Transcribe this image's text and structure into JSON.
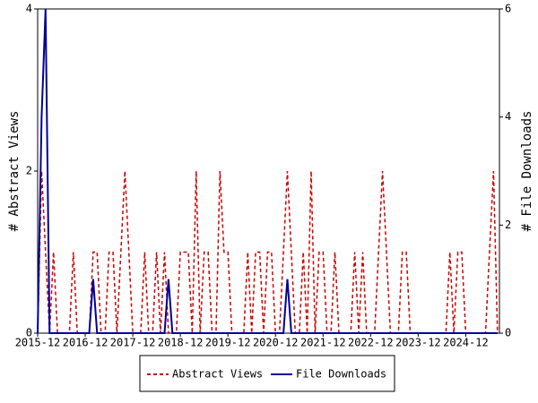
{
  "chart_data": {
    "type": "line",
    "y_label": "# Abstract Views",
    "y2_label": "# File Downloads",
    "categories": [
      "2015-12",
      null,
      null,
      null,
      null,
      null,
      null,
      null,
      null,
      null,
      null,
      null,
      "2016-12",
      null,
      null,
      null,
      null,
      null,
      null,
      null,
      null,
      null,
      null,
      null,
      "2017-12",
      null,
      null,
      null,
      null,
      null,
      null,
      null,
      null,
      null,
      null,
      null,
      "2018-12",
      null,
      null,
      null,
      null,
      null,
      null,
      null,
      null,
      null,
      null,
      null,
      "2019-12",
      null,
      null,
      null,
      null,
      null,
      null,
      null,
      null,
      null,
      null,
      null,
      "2020-12",
      null,
      null,
      null,
      null,
      null,
      null,
      null,
      null,
      null,
      null,
      null,
      "2021-12",
      null,
      null,
      null,
      null,
      null,
      null,
      null,
      null,
      null,
      null,
      null,
      "2022-12",
      null,
      null,
      null,
      null,
      null,
      null,
      null,
      null,
      null,
      null,
      null,
      "2023-12",
      null,
      null,
      null,
      null,
      null,
      null,
      null,
      null,
      null,
      null,
      null,
      "2024-12",
      null,
      null,
      null,
      null,
      null,
      null,
      null,
      null
    ],
    "series": [
      {
        "name": "Abstract Views",
        "color": "#cc0000",
        "dashed": true,
        "values": [
          0,
          2,
          1,
          0,
          1,
          0,
          0,
          0,
          0,
          1,
          0,
          0,
          0,
          0,
          1,
          1,
          0,
          0,
          1,
          1,
          0,
          1,
          2,
          1,
          0,
          0,
          0,
          1,
          0,
          0,
          1,
          0,
          1,
          0,
          0,
          0,
          1,
          1,
          1,
          0,
          2,
          0,
          1,
          1,
          0,
          0,
          2,
          1,
          1,
          0,
          0,
          0,
          0,
          1,
          0,
          1,
          1,
          0,
          1,
          1,
          0,
          0,
          1,
          2,
          1,
          0,
          0,
          1,
          0,
          2,
          0,
          1,
          1,
          0,
          0,
          1,
          0,
          0,
          0,
          0,
          1,
          0,
          1,
          0,
          0,
          0,
          1,
          2,
          1,
          0,
          0,
          0,
          1,
          1,
          0,
          0,
          0,
          0,
          0,
          0,
          0,
          0,
          0,
          0,
          1,
          0,
          1,
          1,
          0,
          0,
          0,
          0,
          0,
          0,
          1,
          2,
          0
        ]
      },
      {
        "name": "File Downloads",
        "color": "#000099",
        "dashed": false,
        "axis": "y2",
        "values": [
          0,
          4,
          6,
          0,
          0,
          0,
          0,
          0,
          0,
          0,
          0,
          0,
          0,
          0,
          1,
          0,
          0,
          0,
          0,
          0,
          0,
          0,
          0,
          0,
          0,
          0,
          0,
          0,
          0,
          0,
          0,
          0,
          0,
          1,
          0,
          0,
          0,
          0,
          0,
          0,
          0,
          0,
          0,
          0,
          0,
          0,
          0,
          0,
          0,
          0,
          0,
          0,
          0,
          0,
          0,
          0,
          0,
          0,
          0,
          0,
          0,
          0,
          0,
          1,
          0,
          0,
          0,
          0,
          0,
          0,
          0,
          0,
          0,
          0,
          0,
          0,
          0,
          0,
          0,
          0,
          0,
          0,
          0,
          0,
          0,
          0,
          0,
          0,
          0,
          0,
          0,
          0,
          0,
          0,
          0,
          0,
          0,
          0,
          0,
          0,
          0,
          0,
          0,
          0,
          0,
          0,
          0,
          0,
          0,
          0,
          0,
          0,
          0,
          0,
          0,
          0,
          0
        ]
      }
    ],
    "ylim": [
      0,
      4
    ],
    "yticks": [
      0,
      2,
      4
    ],
    "y2lim": [
      0,
      6
    ],
    "y2ticks": [
      0,
      2,
      4,
      6
    ],
    "legend": "bottom"
  }
}
